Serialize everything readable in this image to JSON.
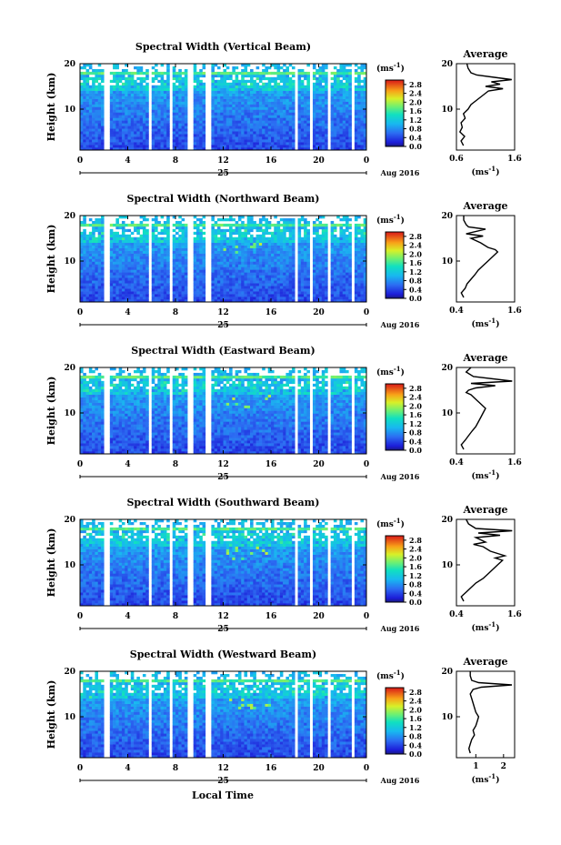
{
  "figure": {
    "xlabel": "Local Time",
    "date_label": "25",
    "month_label": "Aug 2016",
    "ylabel": "Height (km)",
    "colorbar_unit": "(ms",
    "colorbar_unit_exp": "-1",
    "colorbar_unit_close": ")",
    "avg_title": "Average",
    "avg_unit": "(ms",
    "avg_unit_exp": "-1",
    "avg_unit_close": ")"
  },
  "chart_data": [
    {
      "type": "heatmap",
      "title": "Spectral Width (Vertical Beam)",
      "xlabel": "Local Time",
      "ylabel": "Height (km)",
      "xlim": [
        0,
        24
      ],
      "ylim": [
        1,
        20
      ],
      "xticks": [
        "0",
        "4",
        "8",
        "12",
        "16",
        "20",
        "0"
      ],
      "yticks": [
        "10",
        "20"
      ],
      "colorbar": {
        "unit": "ms-1",
        "range": [
          0,
          3.0
        ],
        "ticks": [
          "0.0",
          "0.4",
          "0.8",
          "1.2",
          "1.6",
          "2.0",
          "2.4",
          "2.8"
        ]
      },
      "data_gaps_hours": [
        [
          2.0,
          2.5
        ],
        [
          5.8,
          6.1
        ],
        [
          7.4,
          7.7
        ],
        [
          9.0,
          9.5
        ],
        [
          10.6,
          11.0
        ],
        [
          18.0,
          18.25
        ],
        [
          19.3,
          19.5
        ],
        [
          20.8,
          21.0
        ],
        [
          22.7,
          23.1
        ]
      ],
      "average": {
        "xlabel": "(ms-1)",
        "xlim": [
          0.6,
          1.6
        ],
        "xticks": [
          "0.6",
          "1.6"
        ],
        "profile": [
          [
            0.72,
            2
          ],
          [
            0.68,
            3
          ],
          [
            0.74,
            4
          ],
          [
            0.66,
            5
          ],
          [
            0.7,
            6
          ],
          [
            0.68,
            7
          ],
          [
            0.75,
            8
          ],
          [
            0.72,
            9
          ],
          [
            0.8,
            10
          ],
          [
            0.85,
            11
          ],
          [
            0.95,
            12
          ],
          [
            1.05,
            13
          ],
          [
            1.15,
            14
          ],
          [
            1.4,
            14.5
          ],
          [
            1.1,
            15
          ],
          [
            1.35,
            15.5
          ],
          [
            1.2,
            16
          ],
          [
            1.55,
            16.5
          ],
          [
            1.25,
            17
          ],
          [
            0.95,
            17.5
          ],
          [
            0.85,
            18
          ],
          [
            0.8,
            19
          ],
          [
            0.78,
            20
          ]
        ]
      }
    },
    {
      "type": "heatmap",
      "title": "Spectral Width (Northward Beam)",
      "xlabel": "Local Time",
      "ylabel": "Height (km)",
      "xlim": [
        0,
        24
      ],
      "ylim": [
        1,
        20
      ],
      "xticks": [
        "0",
        "4",
        "8",
        "12",
        "16",
        "20",
        "0"
      ],
      "yticks": [
        "10",
        "20"
      ],
      "colorbar": {
        "unit": "ms-1",
        "range": [
          0,
          3.0
        ],
        "ticks": [
          "0.0",
          "0.4",
          "0.8",
          "1.2",
          "1.6",
          "2.0",
          "2.4",
          "2.8"
        ]
      },
      "data_gaps_hours": [
        [
          2.0,
          2.5
        ],
        [
          5.8,
          6.1
        ],
        [
          7.4,
          7.7
        ],
        [
          9.0,
          9.5
        ],
        [
          10.6,
          11.0
        ],
        [
          18.0,
          18.25
        ],
        [
          19.3,
          19.5
        ],
        [
          20.8,
          21.0
        ],
        [
          22.7,
          23.1
        ]
      ],
      "average": {
        "xlabel": "(ms-1)",
        "xlim": [
          0.4,
          1.6
        ],
        "xticks": [
          "0.4",
          "1.6"
        ],
        "profile": [
          [
            0.55,
            2
          ],
          [
            0.5,
            3
          ],
          [
            0.58,
            4
          ],
          [
            0.62,
            5
          ],
          [
            0.7,
            6
          ],
          [
            0.78,
            7
          ],
          [
            0.85,
            8
          ],
          [
            0.95,
            9
          ],
          [
            1.05,
            10
          ],
          [
            1.15,
            11
          ],
          [
            1.25,
            12
          ],
          [
            1.2,
            12.5
          ],
          [
            1.05,
            13
          ],
          [
            0.9,
            14
          ],
          [
            0.7,
            15
          ],
          [
            0.95,
            15.5
          ],
          [
            0.6,
            16
          ],
          [
            1.0,
            17
          ],
          [
            0.65,
            17.5
          ],
          [
            0.6,
            18
          ],
          [
            0.55,
            19
          ],
          [
            0.55,
            20
          ]
        ]
      }
    },
    {
      "type": "heatmap",
      "title": "Spectral Width (Eastward Beam)",
      "xlabel": "Local Time",
      "ylabel": "Height (km)",
      "xlim": [
        0,
        24
      ],
      "ylim": [
        1,
        20
      ],
      "xticks": [
        "0",
        "4",
        "8",
        "12",
        "16",
        "20",
        "0"
      ],
      "yticks": [
        "10",
        "20"
      ],
      "colorbar": {
        "unit": "ms-1",
        "range": [
          0,
          3.0
        ],
        "ticks": [
          "0.0",
          "0.4",
          "0.8",
          "1.2",
          "1.6",
          "2.0",
          "2.4",
          "2.8"
        ]
      },
      "data_gaps_hours": [
        [
          2.0,
          2.5
        ],
        [
          5.8,
          6.1
        ],
        [
          7.4,
          7.7
        ],
        [
          9.0,
          9.5
        ],
        [
          10.6,
          11.0
        ],
        [
          18.0,
          18.25
        ],
        [
          19.3,
          19.5
        ],
        [
          20.8,
          21.0
        ],
        [
          22.7,
          23.1
        ]
      ],
      "average": {
        "xlabel": "(ms-1)",
        "xlim": [
          0.4,
          1.6
        ],
        "xticks": [
          "0.4",
          "1.6"
        ],
        "profile": [
          [
            0.55,
            2
          ],
          [
            0.5,
            3
          ],
          [
            0.58,
            4
          ],
          [
            0.65,
            5
          ],
          [
            0.72,
            6
          ],
          [
            0.8,
            7
          ],
          [
            0.85,
            8
          ],
          [
            0.9,
            9
          ],
          [
            0.95,
            10
          ],
          [
            1.0,
            11
          ],
          [
            0.9,
            12
          ],
          [
            0.8,
            13
          ],
          [
            0.7,
            14
          ],
          [
            0.6,
            14.5
          ],
          [
            0.65,
            15
          ],
          [
            0.8,
            15.5
          ],
          [
            1.2,
            16
          ],
          [
            0.7,
            16.5
          ],
          [
            1.55,
            17
          ],
          [
            0.75,
            18
          ],
          [
            0.6,
            19
          ],
          [
            0.7,
            20
          ]
        ]
      }
    },
    {
      "type": "heatmap",
      "title": "Spectral Width (Southward Beam)",
      "xlabel": "Local Time",
      "ylabel": "Height (km)",
      "xlim": [
        0,
        24
      ],
      "ylim": [
        1,
        20
      ],
      "xticks": [
        "0",
        "4",
        "8",
        "12",
        "16",
        "20",
        "0"
      ],
      "yticks": [
        "10",
        "20"
      ],
      "colorbar": {
        "unit": "ms-1",
        "range": [
          0,
          3.0
        ],
        "ticks": [
          "0.0",
          "0.4",
          "0.8",
          "1.2",
          "1.6",
          "2.0",
          "2.4",
          "2.8"
        ]
      },
      "data_gaps_hours": [
        [
          2.0,
          2.5
        ],
        [
          5.8,
          6.1
        ],
        [
          7.4,
          7.7
        ],
        [
          9.0,
          9.5
        ],
        [
          10.6,
          11.0
        ],
        [
          18.0,
          18.25
        ],
        [
          19.3,
          19.5
        ],
        [
          20.8,
          21.0
        ],
        [
          22.7,
          23.1
        ]
      ],
      "average": {
        "xlabel": "(ms-1)",
        "xlim": [
          0.4,
          1.6
        ],
        "xticks": [
          "0.4",
          "1.6"
        ],
        "profile": [
          [
            0.55,
            2
          ],
          [
            0.5,
            3
          ],
          [
            0.6,
            4
          ],
          [
            0.7,
            5
          ],
          [
            0.8,
            6
          ],
          [
            0.95,
            7
          ],
          [
            1.05,
            8
          ],
          [
            1.15,
            9
          ],
          [
            1.25,
            10
          ],
          [
            1.35,
            11
          ],
          [
            1.2,
            11.5
          ],
          [
            1.4,
            12
          ],
          [
            1.1,
            13
          ],
          [
            0.95,
            14
          ],
          [
            0.75,
            14.5
          ],
          [
            1.0,
            15
          ],
          [
            0.8,
            16
          ],
          [
            1.3,
            16.5
          ],
          [
            0.85,
            17
          ],
          [
            1.55,
            17.5
          ],
          [
            0.8,
            18
          ],
          [
            0.65,
            19
          ],
          [
            0.6,
            20
          ]
        ]
      }
    },
    {
      "type": "heatmap",
      "title": "Spectral Width (Westward Beam)",
      "xlabel": "Local Time",
      "ylabel": "Height (km)",
      "xlim": [
        0,
        24
      ],
      "ylim": [
        1,
        20
      ],
      "xticks": [
        "0",
        "4",
        "8",
        "12",
        "16",
        "20",
        "0"
      ],
      "yticks": [
        "10",
        "20"
      ],
      "colorbar": {
        "unit": "ms-1",
        "range": [
          0,
          3.0
        ],
        "ticks": [
          "0.0",
          "0.4",
          "0.8",
          "1.2",
          "1.6",
          "2.0",
          "2.4",
          "2.8"
        ]
      },
      "data_gaps_hours": [
        [
          2.0,
          2.5
        ],
        [
          5.8,
          6.1
        ],
        [
          7.4,
          7.7
        ],
        [
          9.0,
          9.5
        ],
        [
          10.6,
          11.0
        ],
        [
          18.0,
          18.25
        ],
        [
          19.3,
          19.5
        ],
        [
          20.8,
          21.0
        ],
        [
          22.7,
          23.1
        ]
      ],
      "average": {
        "xlabel": "(ms-1)",
        "xlim": [
          0.3,
          2.4
        ],
        "xticks": [
          "1",
          "2"
        ],
        "profile": [
          [
            0.8,
            2
          ],
          [
            0.75,
            3
          ],
          [
            0.8,
            4
          ],
          [
            0.85,
            5
          ],
          [
            0.95,
            6
          ],
          [
            0.9,
            7
          ],
          [
            1.0,
            8
          ],
          [
            1.05,
            9
          ],
          [
            1.1,
            10
          ],
          [
            1.0,
            11
          ],
          [
            0.95,
            12
          ],
          [
            0.9,
            13
          ],
          [
            0.85,
            14
          ],
          [
            0.8,
            15
          ],
          [
            0.9,
            16
          ],
          [
            1.2,
            16.5
          ],
          [
            2.3,
            17
          ],
          [
            1.1,
            17.5
          ],
          [
            0.85,
            18
          ],
          [
            0.8,
            19
          ],
          [
            0.8,
            20
          ]
        ]
      }
    }
  ]
}
